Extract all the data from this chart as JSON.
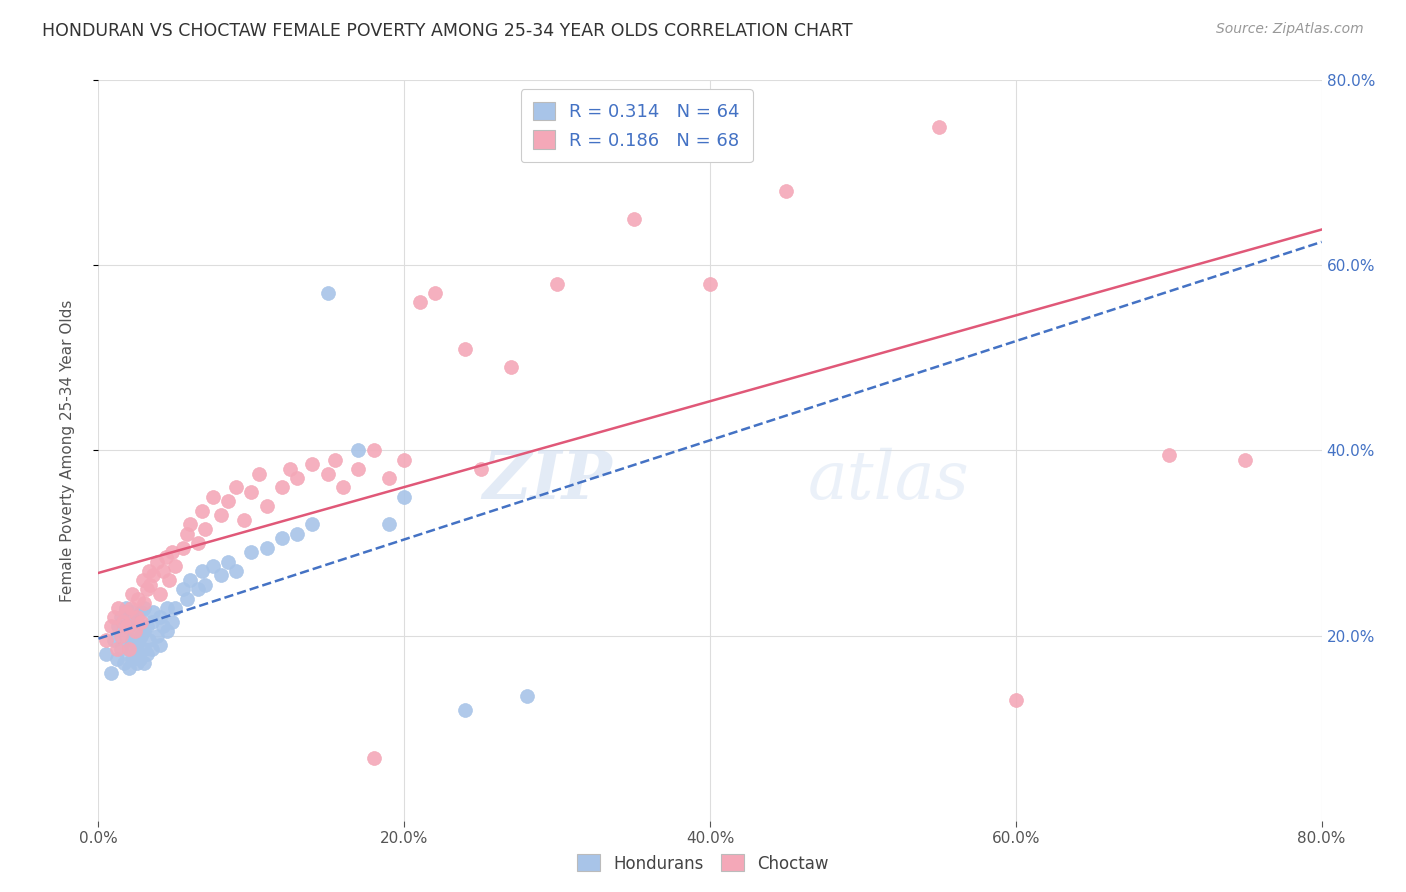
{
  "title": "HONDURAN VS CHOCTAW FEMALE POVERTY AMONG 25-34 YEAR OLDS CORRELATION CHART",
  "source": "Source: ZipAtlas.com",
  "ylabel": "Female Poverty Among 25-34 Year Olds",
  "xlim": [
    0,
    0.8
  ],
  "ylim": [
    0,
    0.8
  ],
  "honduran_color": "#a8c4e8",
  "choctaw_color": "#f4a8b8",
  "honduran_line_color": "#4472c4",
  "choctaw_line_color": "#e05878",
  "honduran_R": 0.314,
  "honduran_N": 64,
  "choctaw_R": 0.186,
  "choctaw_N": 68,
  "right_axis_tick_color": "#4472c4",
  "watermark": "ZIPatlas",
  "background_color": "#ffffff",
  "grid_color": "#dddddd",
  "honduran_x": [
    0.005,
    0.008,
    0.01,
    0.012,
    0.013,
    0.015,
    0.015,
    0.017,
    0.018,
    0.018,
    0.02,
    0.02,
    0.02,
    0.022,
    0.022,
    0.022,
    0.024,
    0.024,
    0.025,
    0.025,
    0.025,
    0.026,
    0.027,
    0.028,
    0.028,
    0.03,
    0.03,
    0.03,
    0.03,
    0.032,
    0.032,
    0.033,
    0.035,
    0.035,
    0.036,
    0.038,
    0.04,
    0.04,
    0.042,
    0.045,
    0.045,
    0.048,
    0.05,
    0.055,
    0.058,
    0.06,
    0.065,
    0.068,
    0.07,
    0.075,
    0.08,
    0.085,
    0.09,
    0.1,
    0.11,
    0.12,
    0.13,
    0.14,
    0.15,
    0.17,
    0.19,
    0.2,
    0.24,
    0.28
  ],
  "honduran_y": [
    0.18,
    0.16,
    0.195,
    0.175,
    0.21,
    0.185,
    0.22,
    0.17,
    0.2,
    0.23,
    0.165,
    0.185,
    0.21,
    0.175,
    0.195,
    0.225,
    0.18,
    0.205,
    0.17,
    0.19,
    0.215,
    0.195,
    0.175,
    0.2,
    0.225,
    0.17,
    0.185,
    0.205,
    0.23,
    0.18,
    0.21,
    0.195,
    0.185,
    0.215,
    0.225,
    0.2,
    0.19,
    0.22,
    0.21,
    0.205,
    0.23,
    0.215,
    0.23,
    0.25,
    0.24,
    0.26,
    0.25,
    0.27,
    0.255,
    0.275,
    0.265,
    0.28,
    0.27,
    0.29,
    0.295,
    0.305,
    0.31,
    0.32,
    0.57,
    0.4,
    0.32,
    0.35,
    0.12,
    0.135
  ],
  "choctaw_x": [
    0.005,
    0.008,
    0.01,
    0.012,
    0.013,
    0.015,
    0.016,
    0.018,
    0.019,
    0.02,
    0.021,
    0.022,
    0.024,
    0.025,
    0.026,
    0.028,
    0.029,
    0.03,
    0.032,
    0.033,
    0.034,
    0.036,
    0.038,
    0.04,
    0.042,
    0.044,
    0.046,
    0.048,
    0.05,
    0.055,
    0.058,
    0.06,
    0.065,
    0.068,
    0.07,
    0.075,
    0.08,
    0.085,
    0.09,
    0.095,
    0.1,
    0.105,
    0.11,
    0.12,
    0.125,
    0.13,
    0.14,
    0.15,
    0.155,
    0.16,
    0.17,
    0.18,
    0.19,
    0.2,
    0.21,
    0.22,
    0.24,
    0.25,
    0.27,
    0.3,
    0.35,
    0.4,
    0.45,
    0.55,
    0.6,
    0.7,
    0.75,
    0.18
  ],
  "choctaw_y": [
    0.195,
    0.21,
    0.22,
    0.185,
    0.23,
    0.2,
    0.215,
    0.225,
    0.21,
    0.185,
    0.23,
    0.245,
    0.205,
    0.22,
    0.24,
    0.215,
    0.26,
    0.235,
    0.25,
    0.27,
    0.255,
    0.265,
    0.28,
    0.245,
    0.27,
    0.285,
    0.26,
    0.29,
    0.275,
    0.295,
    0.31,
    0.32,
    0.3,
    0.335,
    0.315,
    0.35,
    0.33,
    0.345,
    0.36,
    0.325,
    0.355,
    0.375,
    0.34,
    0.36,
    0.38,
    0.37,
    0.385,
    0.375,
    0.39,
    0.36,
    0.38,
    0.4,
    0.37,
    0.39,
    0.56,
    0.57,
    0.51,
    0.38,
    0.49,
    0.58,
    0.65,
    0.58,
    0.68,
    0.75,
    0.13,
    0.395,
    0.39,
    0.068
  ]
}
